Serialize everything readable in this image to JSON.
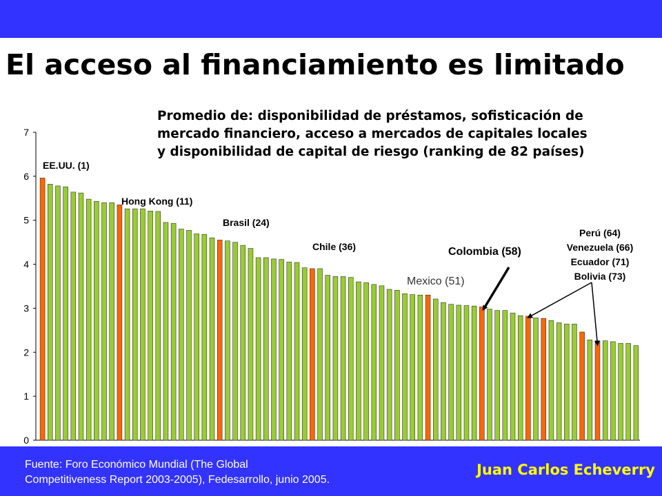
{
  "colors": {
    "band": "#3333ff",
    "bar_green": "#99cc33",
    "bar_orange": "#ff6600",
    "author": "#ffff00"
  },
  "slide": {
    "title": "El acceso al financiamiento es limitado",
    "footer_source_line1": "Fuente: Foro Económico Mundial (The Global",
    "footer_source_line2": "Competitiveness Report 2003-2005), Fedesarrollo, junio 2005.",
    "author": "Juan Carlos Echeverry"
  },
  "chart_data": {
    "type": "bar",
    "title_line1": "Promedio de: disponibilidad de préstamos, sofisticación de",
    "title_line2": "mercado financiero, acceso a mercados de capitales locales",
    "title_line3": "y disponibilidad de capital de riesgo (ranking de 82 países)",
    "ylim": [
      0,
      7
    ],
    "yticks": [
      "0",
      "1",
      "2",
      "3",
      "4",
      "5",
      "6",
      "7"
    ],
    "values": [
      5.96,
      5.82,
      5.78,
      5.76,
      5.64,
      5.62,
      5.48,
      5.43,
      5.4,
      5.4,
      5.35,
      5.26,
      5.26,
      5.26,
      5.21,
      5.2,
      4.95,
      4.93,
      4.8,
      4.77,
      4.69,
      4.68,
      4.6,
      4.55,
      4.53,
      4.5,
      4.43,
      4.36,
      4.15,
      4.15,
      4.12,
      4.11,
      4.05,
      4.04,
      3.92,
      3.9,
      3.9,
      3.75,
      3.72,
      3.72,
      3.7,
      3.6,
      3.58,
      3.54,
      3.51,
      3.43,
      3.41,
      3.33,
      3.31,
      3.3,
      3.3,
      3.21,
      3.13,
      3.09,
      3.07,
      3.06,
      3.05,
      3.03,
      2.98,
      2.95,
      2.95,
      2.89,
      2.83,
      2.82,
      2.78,
      2.77,
      2.72,
      2.67,
      2.64,
      2.64,
      2.46,
      2.28,
      2.26,
      2.26,
      2.24,
      2.2,
      2.2,
      2.15
    ],
    "highlighted_ranks": [
      1,
      11,
      24,
      36,
      51,
      58,
      64,
      66,
      71,
      73
    ],
    "annotations": {
      "usa": "EE.UU. (1)",
      "hongkong": "Hong Kong (11)",
      "brasil": "Brasil (24)",
      "chile": "Chile (36)",
      "mexico": "Mexico (51)",
      "colombia": "Colombia (58)",
      "peru": "Perú (64)",
      "venezuela": "Venezuela (66)",
      "ecuador": "Ecuador (71)",
      "bolivia": "Bolivia (73)"
    }
  }
}
